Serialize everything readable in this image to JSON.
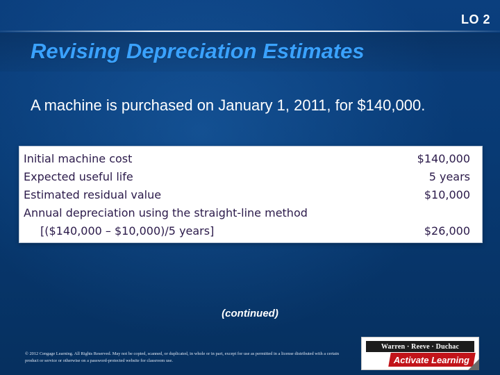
{
  "header": {
    "lo_badge": "LO 2",
    "title": "Revising Depreciation Estimates"
  },
  "body": {
    "text": "A machine is purchased on January 1, 2011, for $140,000."
  },
  "table": {
    "rows": [
      {
        "label": "Initial machine cost",
        "value": "$140,000"
      },
      {
        "label": "Expected useful life",
        "value": "5 years"
      },
      {
        "label": "Estimated residual value",
        "value": "$10,000"
      },
      {
        "label": "Annual depreciation using the straight-line method",
        "value": ""
      },
      {
        "label": "[($140,000 – $10,000)/5 years]",
        "value": "$26,000"
      }
    ]
  },
  "footer": {
    "continued": "(continued)",
    "copyright": "© 2012 Cengage Learning. All Rights Reserved. May not be copied, scanned, or duplicated, in whole or in part, except for use as permitted in a license distributed with a certain product or service or otherwise on a password-protected website for classroom use.",
    "logo_top": "Warren · Reeve · Duchac",
    "logo_bottom": "Activate Learning"
  }
}
